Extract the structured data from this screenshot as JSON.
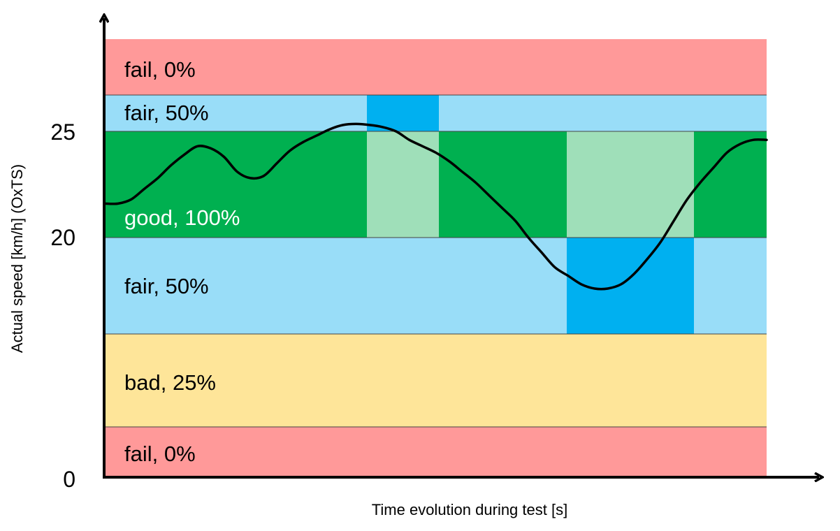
{
  "chart_data": {
    "type": "line",
    "xlabel": "Time evolution during test [s]",
    "ylabel": "Actual speed [km/h] (OxTS)",
    "y_ticks": [
      "25",
      "20",
      "0"
    ],
    "colors": {
      "fail": "#ff9999",
      "fair": "#99ddf8",
      "fair_highlight": "#00b0f0",
      "good": "#00b050",
      "good_highlight": "#9fdfb9",
      "bad": "#fee599",
      "curve": "#000000"
    },
    "bands": [
      {
        "label": "fail, 0%",
        "color": "#ff9999",
        "text_color": "#000000"
      },
      {
        "label": "fair, 50%",
        "color": "#99ddf8",
        "text_color": "#000000"
      },
      {
        "label": "good, 100%",
        "color": "#00b050",
        "text_color": "#ffffff"
      },
      {
        "label": "fair, 50%",
        "color": "#99ddf8",
        "text_color": "#000000"
      },
      {
        "label": "bad, 25%",
        "color": "#fee599",
        "text_color": "#000000"
      },
      {
        "label": "fail, 0%",
        "color": "#ff9999",
        "text_color": "#000000"
      }
    ],
    "series": [
      {
        "x": [
          0,
          2,
          4,
          6,
          8,
          10,
          12,
          14,
          16,
          18,
          20,
          22,
          24,
          26,
          28,
          30,
          32,
          34,
          36,
          38,
          40,
          42,
          44,
          46,
          48,
          50,
          52,
          54,
          56,
          58,
          60,
          62,
          64,
          66,
          68,
          70,
          72,
          74,
          76,
          78,
          80,
          82,
          84,
          86,
          88,
          90,
          92,
          94,
          96,
          98,
          100
        ],
        "values": [
          21.6,
          21.6,
          21.8,
          22.3,
          22.8,
          23.4,
          23.9,
          24.3,
          24.2,
          23.8,
          23.1,
          22.8,
          22.9,
          23.5,
          24.1,
          24.5,
          24.8,
          25.1,
          25.3,
          25.35,
          25.3,
          25.2,
          25.0,
          24.6,
          24.3,
          24.0,
          23.6,
          23.1,
          22.6,
          22.0,
          21.4,
          20.8,
          20.0,
          19.3,
          18.6,
          18.2,
          17.8,
          17.6,
          17.6,
          17.8,
          18.3,
          19.0,
          19.8,
          20.8,
          21.8,
          22.6,
          23.3,
          24.0,
          24.4,
          24.6,
          24.6
        ]
      }
    ]
  }
}
